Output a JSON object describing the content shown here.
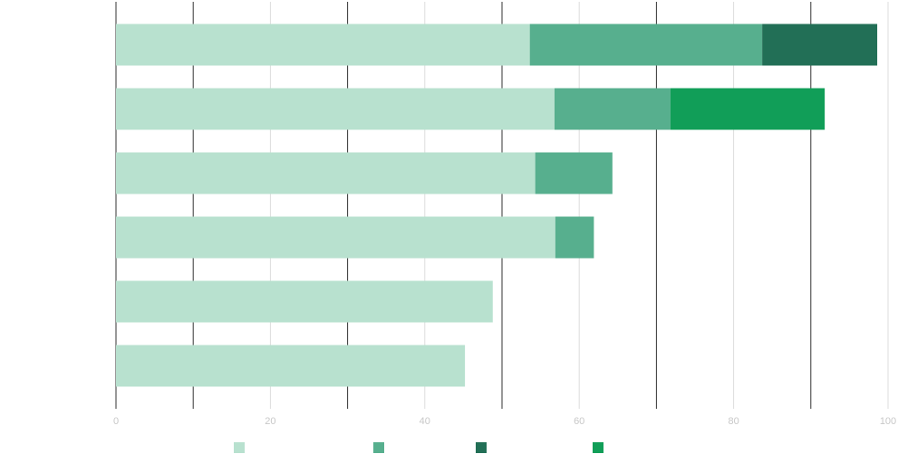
{
  "chart_data": {
    "type": "stacked-barh",
    "categories": [
      null,
      null,
      null,
      null,
      null,
      null
    ],
    "series": [
      {
        "color": "#b8e1cf",
        "values": [
          53.6,
          56.8,
          54.3,
          56.9,
          48.8,
          45.2
        ]
      },
      {
        "color": "#57af8e",
        "values": [
          30.1,
          15,
          10,
          5,
          null,
          null
        ]
      },
      {
        "color": "#226f56",
        "values": [
          14.9,
          null,
          null,
          null,
          null,
          null
        ]
      },
      {
        "color": "#119e58",
        "values": [
          null,
          20,
          null,
          null,
          null,
          null
        ]
      }
    ],
    "xlim": [
      0,
      100
    ],
    "xticks": [
      0,
      20,
      40,
      60,
      80,
      100
    ],
    "minor_xticks": [
      10,
      30,
      50,
      70,
      90
    ],
    "grid": true,
    "legend": "bottom"
  }
}
